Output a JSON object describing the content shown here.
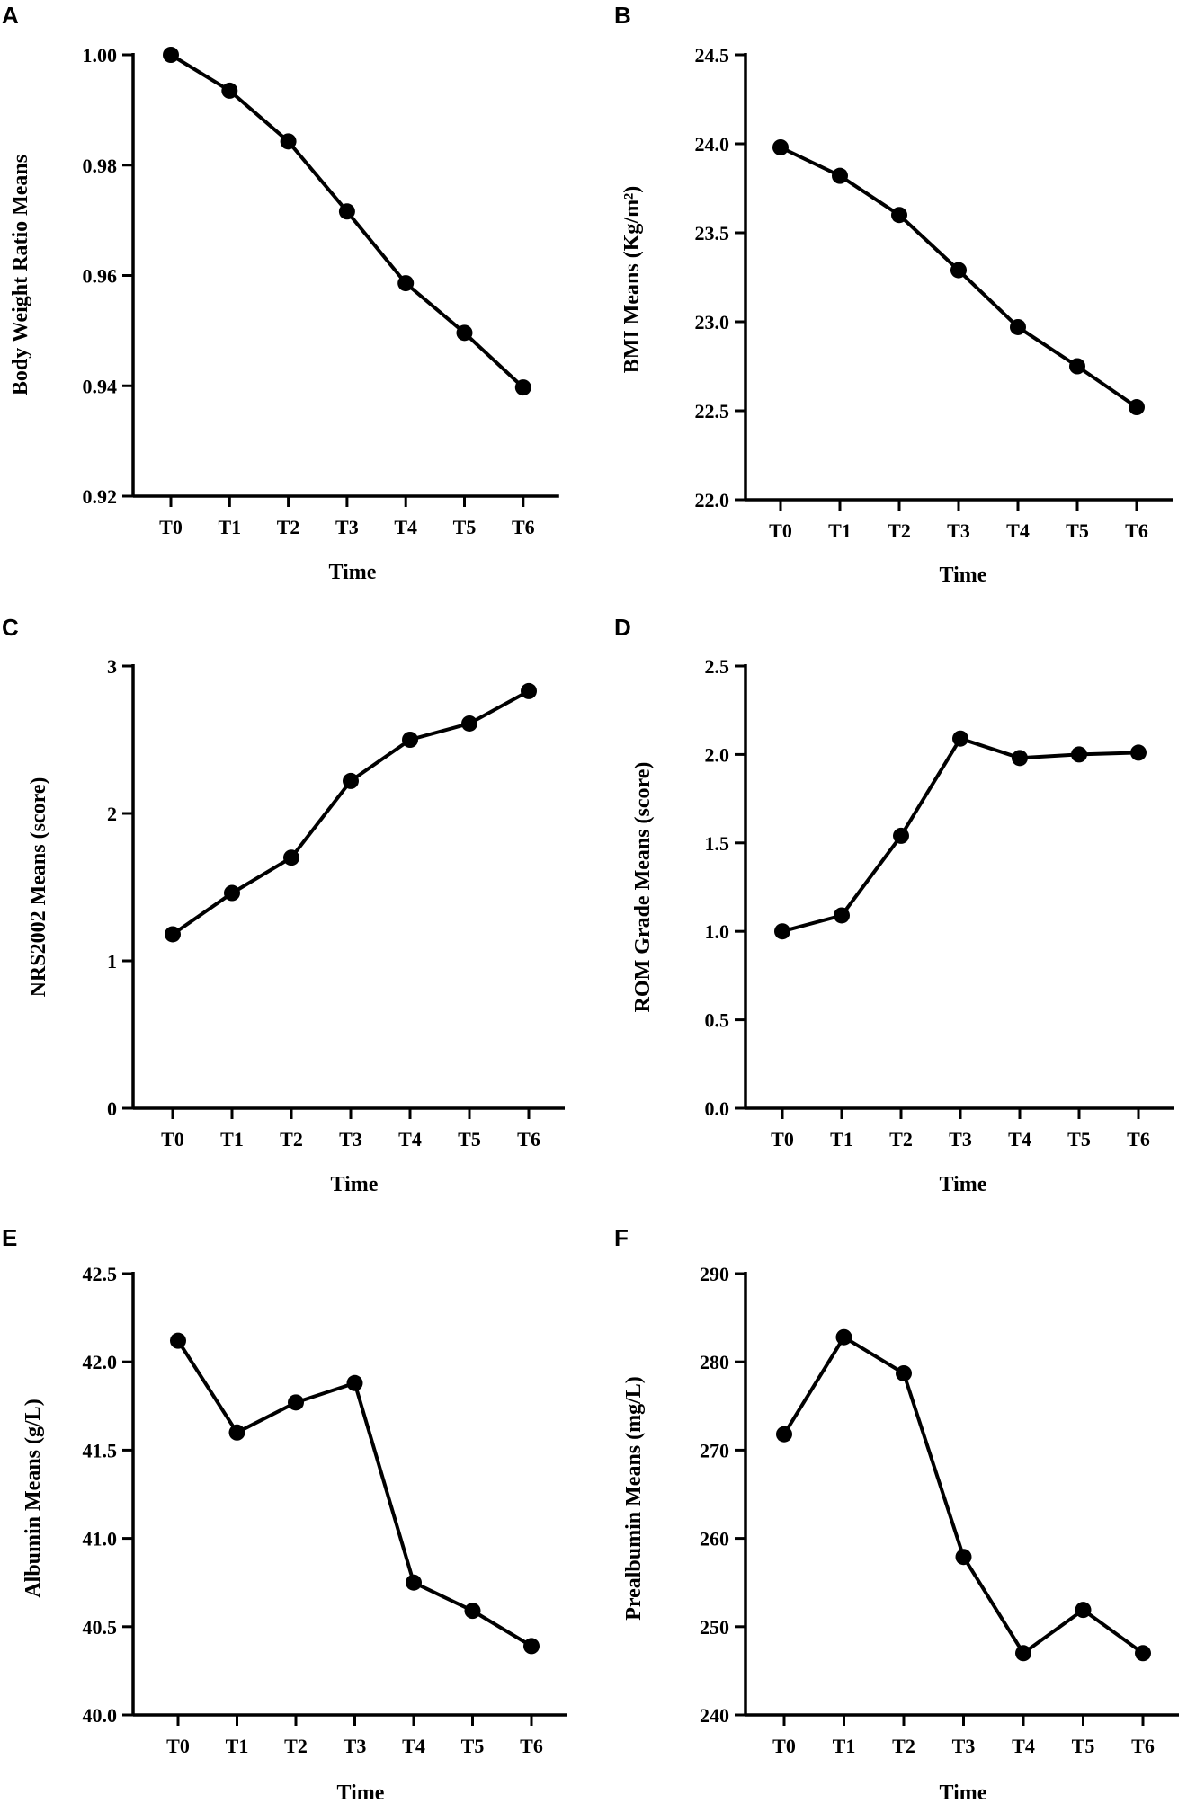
{
  "chart_data": [
    {
      "panel": "A",
      "type": "line",
      "categories": [
        "T0",
        "T1",
        "T2",
        "T3",
        "T4",
        "T5",
        "T6"
      ],
      "values": [
        1.0,
        0.9935,
        0.9843,
        0.9716,
        0.9586,
        0.9496,
        0.9397
      ],
      "ylim": [
        0.92,
        1.0
      ],
      "yticks": [
        "0.92",
        "0.94",
        "0.96",
        "0.98",
        "1.00"
      ],
      "xlabel": "Time",
      "ylabel": "Body Weight Ratio Means"
    },
    {
      "panel": "B",
      "type": "line",
      "categories": [
        "T0",
        "T1",
        "T2",
        "T3",
        "T4",
        "T5",
        "T6"
      ],
      "values": [
        23.98,
        23.82,
        23.6,
        23.29,
        22.97,
        22.75,
        22.52
      ],
      "ylim": [
        22.0,
        24.5
      ],
      "yticks": [
        "22.0",
        "22.5",
        "23.0",
        "23.5",
        "24.0",
        "24.5"
      ],
      "xlabel": "Time",
      "ylabel": "BMI Means (Kg/m²)"
    },
    {
      "panel": "C",
      "type": "line",
      "categories": [
        "T0",
        "T1",
        "T2",
        "T3",
        "T4",
        "T5",
        "T6"
      ],
      "values": [
        1.18,
        1.46,
        1.7,
        2.22,
        2.5,
        2.61,
        2.83
      ],
      "ylim": [
        0,
        3
      ],
      "yticks": [
        "0",
        "1",
        "2",
        "3"
      ],
      "xlabel": "Time",
      "ylabel": "NRS2002 Means (score)"
    },
    {
      "panel": "D",
      "type": "line",
      "categories": [
        "T0",
        "T1",
        "T2",
        "T3",
        "T4",
        "T5",
        "T6"
      ],
      "values": [
        1.0,
        1.09,
        1.54,
        2.09,
        1.98,
        2.0,
        2.01
      ],
      "ylim": [
        0.0,
        2.5
      ],
      "yticks": [
        "0.0",
        "0.5",
        "1.0",
        "1.5",
        "2.0",
        "2.5"
      ],
      "xlabel": "Time",
      "ylabel": "ROM Grade Means (score)"
    },
    {
      "panel": "E",
      "type": "line",
      "categories": [
        "T0",
        "T1",
        "T2",
        "T3",
        "T4",
        "T5",
        "T6"
      ],
      "values": [
        42.12,
        41.6,
        41.77,
        41.88,
        40.75,
        40.59,
        40.39
      ],
      "ylim": [
        40.0,
        42.5
      ],
      "yticks": [
        "40.0",
        "40.5",
        "41.0",
        "41.5",
        "42.0",
        "42.5"
      ],
      "xlabel": "Time",
      "ylabel": "Albumin Means (g/L)"
    },
    {
      "panel": "F",
      "type": "line",
      "categories": [
        "T0",
        "T1",
        "T2",
        "T3",
        "T4",
        "T5",
        "T6"
      ],
      "values": [
        271.8,
        282.8,
        278.7,
        257.9,
        247.0,
        251.9,
        247.0
      ],
      "ylim": [
        240,
        290
      ],
      "yticks": [
        "240",
        "250",
        "260",
        "270",
        "280",
        "290"
      ],
      "xlabel": "Time",
      "ylabel": "Prealbumin Means (mg/L)"
    }
  ]
}
